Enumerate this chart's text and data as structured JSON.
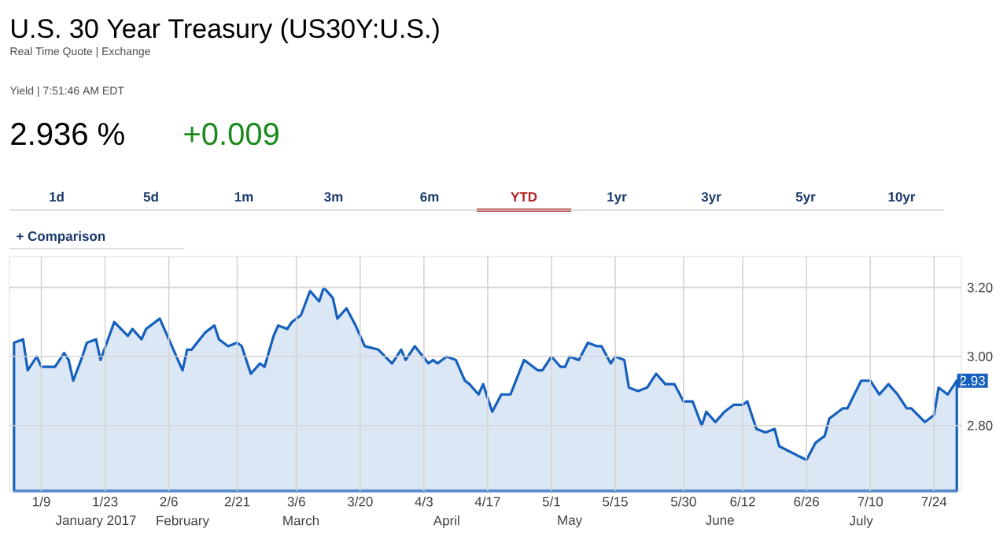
{
  "chart_data": {
    "type": "area",
    "title": "U.S. 30 Year Treasury (US30Y:U.S.)",
    "subtitle": "Real Time Quote | Exchange",
    "annotations": [
      "Yield | 7:51:46 AM EDT",
      "2.936 %",
      "+0.009",
      "1d",
      "5d",
      "1m",
      "3m",
      "6m",
      "YTD",
      "1yr",
      "3yr",
      "5yr",
      "10yr",
      "+ Comparison",
      {
        "text": "2.93",
        "x": "2017-07-29",
        "y": 2.93
      }
    ],
    "x": [
      "2017-01-03",
      "2017-01-05",
      "2017-01-06",
      "2017-01-08",
      "2017-01-09",
      "2017-01-12",
      "2017-01-14",
      "2017-01-15",
      "2017-01-16",
      "2017-01-18",
      "2017-01-19",
      "2017-01-21",
      "2017-01-22",
      "2017-01-25",
      "2017-01-28",
      "2017-01-29",
      "2017-01-31",
      "2017-02-01",
      "2017-02-04",
      "2017-02-06",
      "2017-02-07",
      "2017-02-09",
      "2017-02-10",
      "2017-02-11",
      "2017-02-14",
      "2017-02-16",
      "2017-02-17",
      "2017-02-19",
      "2017-02-21",
      "2017-02-22",
      "2017-02-24",
      "2017-02-26",
      "2017-02-27",
      "2017-03-01",
      "2017-03-02",
      "2017-03-04",
      "2017-03-05",
      "2017-03-07",
      "2017-03-09",
      "2017-03-11",
      "2017-03-12",
      "2017-03-14",
      "2017-03-15",
      "2017-03-17",
      "2017-03-19",
      "2017-03-21",
      "2017-03-24",
      "2017-03-27",
      "2017-03-29",
      "2017-03-30",
      "2017-04-01",
      "2017-04-04",
      "2017-04-05",
      "2017-04-06",
      "2017-04-08",
      "2017-04-10",
      "2017-04-12",
      "2017-04-13",
      "2017-04-15",
      "2017-04-16",
      "2017-04-18",
      "2017-04-20",
      "2017-04-22",
      "2017-04-25",
      "2017-04-28",
      "2017-04-29",
      "2017-05-01",
      "2017-05-03",
      "2017-05-04",
      "2017-05-05",
      "2017-05-07",
      "2017-05-09",
      "2017-05-11",
      "2017-05-12",
      "2017-05-14",
      "2017-05-15",
      "2017-05-17",
      "2017-05-18",
      "2017-05-20",
      "2017-05-22",
      "2017-05-24",
      "2017-05-26",
      "2017-05-28",
      "2017-05-30",
      "2017-06-01",
      "2017-06-03",
      "2017-06-04",
      "2017-06-06",
      "2017-06-08",
      "2017-06-10",
      "2017-06-12",
      "2017-06-13",
      "2017-06-15",
      "2017-06-17",
      "2017-06-19",
      "2017-06-20",
      "2017-06-23",
      "2017-06-26",
      "2017-06-28",
      "2017-06-30",
      "2017-07-01",
      "2017-07-04",
      "2017-07-05",
      "2017-07-08",
      "2017-07-10",
      "2017-07-12",
      "2017-07-14",
      "2017-07-16",
      "2017-07-18",
      "2017-07-19",
      "2017-07-22",
      "2017-07-24",
      "2017-07-25",
      "2017-07-27",
      "2017-07-29"
    ],
    "series": [
      {
        "color": "#1560bd",
        "values": [
          3.04,
          3.05,
          2.96,
          3.0,
          2.97,
          2.97,
          3.01,
          2.99,
          2.93,
          3.0,
          3.04,
          3.05,
          2.99,
          3.1,
          3.06,
          3.08,
          3.05,
          3.08,
          3.11,
          3.05,
          3.02,
          2.96,
          3.02,
          3.02,
          3.07,
          3.09,
          3.05,
          3.03,
          3.04,
          3.03,
          2.95,
          2.98,
          2.97,
          3.06,
          3.09,
          3.08,
          3.1,
          3.12,
          3.19,
          3.16,
          3.2,
          3.17,
          3.11,
          3.14,
          3.09,
          3.03,
          3.02,
          2.98,
          3.02,
          2.99,
          3.03,
          2.98,
          2.99,
          2.98,
          3.0,
          2.99,
          2.93,
          2.92,
          2.89,
          2.92,
          2.84,
          2.89,
          2.89,
          2.99,
          2.96,
          2.96,
          3.0,
          2.97,
          2.97,
          3.0,
          2.99,
          3.04,
          3.03,
          3.03,
          2.98,
          3.0,
          2.99,
          2.91,
          2.9,
          2.91,
          2.95,
          2.92,
          2.92,
          2.87,
          2.87,
          2.8,
          2.84,
          2.81,
          2.84,
          2.86,
          2.86,
          2.87,
          2.79,
          2.78,
          2.79,
          2.74,
          2.72,
          2.7,
          2.75,
          2.77,
          2.82,
          2.85,
          2.85,
          2.93,
          2.93,
          2.89,
          2.92,
          2.89,
          2.85,
          2.85,
          2.81,
          2.83,
          2.91,
          2.89,
          2.93
        ]
      }
    ],
    "xlim": [
      "2017-01-02",
      "2017-07-30"
    ],
    "xticks": [
      {
        "value": "2017-01-09",
        "label": "1/9"
      },
      {
        "value": "2017-01-23",
        "label": "1/23"
      },
      {
        "value": "2017-02-06",
        "label": "2/6"
      },
      {
        "value": "2017-02-21",
        "label": "2/21"
      },
      {
        "value": "2017-03-06",
        "label": "3/6"
      },
      {
        "value": "2017-03-20",
        "label": "3/20"
      },
      {
        "value": "2017-04-03",
        "label": "4/3"
      },
      {
        "value": "2017-04-17",
        "label": "4/17"
      },
      {
        "value": "2017-05-01",
        "label": "5/1"
      },
      {
        "value": "2017-05-15",
        "label": "5/15"
      },
      {
        "value": "2017-05-30",
        "label": "5/30"
      },
      {
        "value": "2017-06-12",
        "label": "6/12"
      },
      {
        "value": "2017-06-26",
        "label": "6/26"
      },
      {
        "value": "2017-07-10",
        "label": "7/10"
      },
      {
        "value": "2017-07-24",
        "label": "7/24"
      }
    ],
    "x2lim": [
      "2017-01-02",
      "2017-07-30"
    ],
    "x2ticks": [
      {
        "value": "2017-01-21",
        "label": "January 2017"
      },
      {
        "value": "2017-02-09",
        "label": "February"
      },
      {
        "value": "2017-03-07",
        "label": "March"
      },
      {
        "value": "2017-04-08",
        "label": "April"
      },
      {
        "value": "2017-05-05",
        "label": "May"
      },
      {
        "value": "2017-06-07",
        "label": "June"
      },
      {
        "value": "2017-07-08",
        "label": "July"
      }
    ],
    "ylim": [
      2.61,
      3.29
    ],
    "yticks": [
      {
        "value": 2.8,
        "label": "2.80"
      },
      {
        "value": 3.0,
        "label": "3.00"
      },
      {
        "value": 3.2,
        "label": "3.20"
      }
    ],
    "grid": true,
    "marker": "none",
    "line_style": "solid"
  }
}
